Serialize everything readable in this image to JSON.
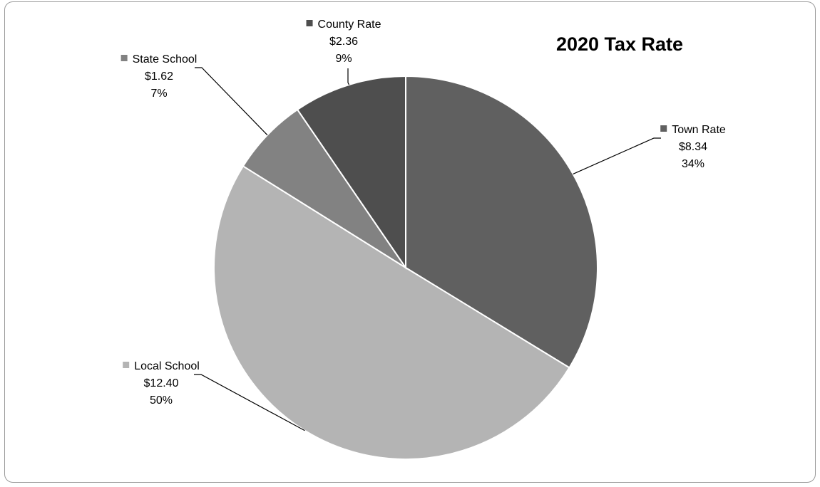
{
  "chart_data": {
    "type": "pie",
    "title": "2020 Tax Rate",
    "slices": [
      {
        "name": "Town Rate",
        "value": 8.34,
        "value_label": "$8.34",
        "percent_label": "34%",
        "color": "#606060"
      },
      {
        "name": "Local School",
        "value": 12.4,
        "value_label": "$12.40",
        "percent_label": "50%",
        "color": "#b4b4b4"
      },
      {
        "name": "State School",
        "value": 1.62,
        "value_label": "$1.62",
        "percent_label": "7%",
        "color": "#828282"
      },
      {
        "name": "County Rate",
        "value": 2.36,
        "value_label": "$2.36",
        "percent_label": "9%",
        "color": "#4e4e4e"
      }
    ],
    "start_angle": "12 o'clock",
    "direction": "clockwise",
    "legend": "none",
    "data_labels": "outside with leader lines"
  }
}
